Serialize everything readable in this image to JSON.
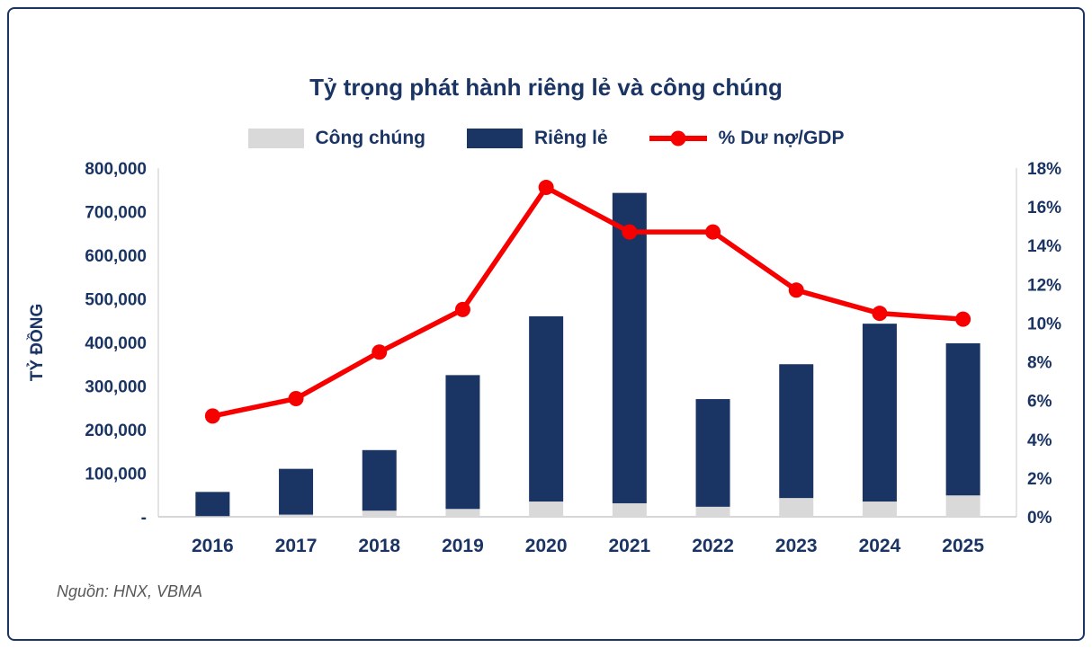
{
  "colors": {
    "navy": "#1a3464",
    "gray": "#d9d9d9",
    "red": "#f60000",
    "axis_line": "#c9c9c9",
    "source_text": "#585858"
  },
  "header": {
    "title": "Tỷ trọng phát hành riêng lẻ và công chúng"
  },
  "legend": [
    {
      "label": "Công chúng"
    },
    {
      "label": "Riêng lẻ"
    },
    {
      "label": "% Dư nợ/GDP"
    }
  ],
  "footer": {
    "source": "Nguồn: HNX, VBMA"
  },
  "chart_data": {
    "type": "bar",
    "subtype": "stacked-bars-with-line",
    "title": "Tỷ trọng phát hành riêng lẻ và công chúng",
    "categories": [
      "2016",
      "2017",
      "2018",
      "2019",
      "2020",
      "2021",
      "2022",
      "2023",
      "2024",
      "2025"
    ],
    "series": [
      {
        "name": "Công chúng",
        "type": "bar",
        "stack": "issuance",
        "color": "#d9d9d9",
        "values": [
          1500,
          5000,
          14000,
          18000,
          35000,
          31000,
          23000,
          43000,
          35000,
          49000
        ]
      },
      {
        "name": "Riêng lẻ",
        "type": "bar",
        "stack": "issuance",
        "color": "#1a3464",
        "values": [
          55500,
          105000,
          139000,
          307000,
          425000,
          712000,
          247000,
          307000,
          408000,
          349000
        ]
      },
      {
        "name": "% Dư nợ/GDP",
        "type": "line",
        "axis": "right",
        "color": "#f60000",
        "values": [
          5.2,
          6.1,
          8.5,
          10.7,
          17.0,
          14.7,
          14.7,
          11.7,
          10.5,
          10.2
        ]
      }
    ],
    "left_axis": {
      "label": "TỶ ĐỒNG",
      "min": 0,
      "max": 800000,
      "step": 100000,
      "tick_labels": [
        "800,000",
        "700,000",
        "600,000",
        "500,000",
        "400,000",
        "300,000",
        "200,000",
        "100,000",
        "-"
      ]
    },
    "right_axis": {
      "min": 0,
      "max": 18,
      "step": 2,
      "tick_labels": [
        "18%",
        "16%",
        "14%",
        "12%",
        "10%",
        "8%",
        "6%",
        "4%",
        "2%",
        "0%"
      ]
    },
    "legend_position": "top",
    "grid": false
  }
}
